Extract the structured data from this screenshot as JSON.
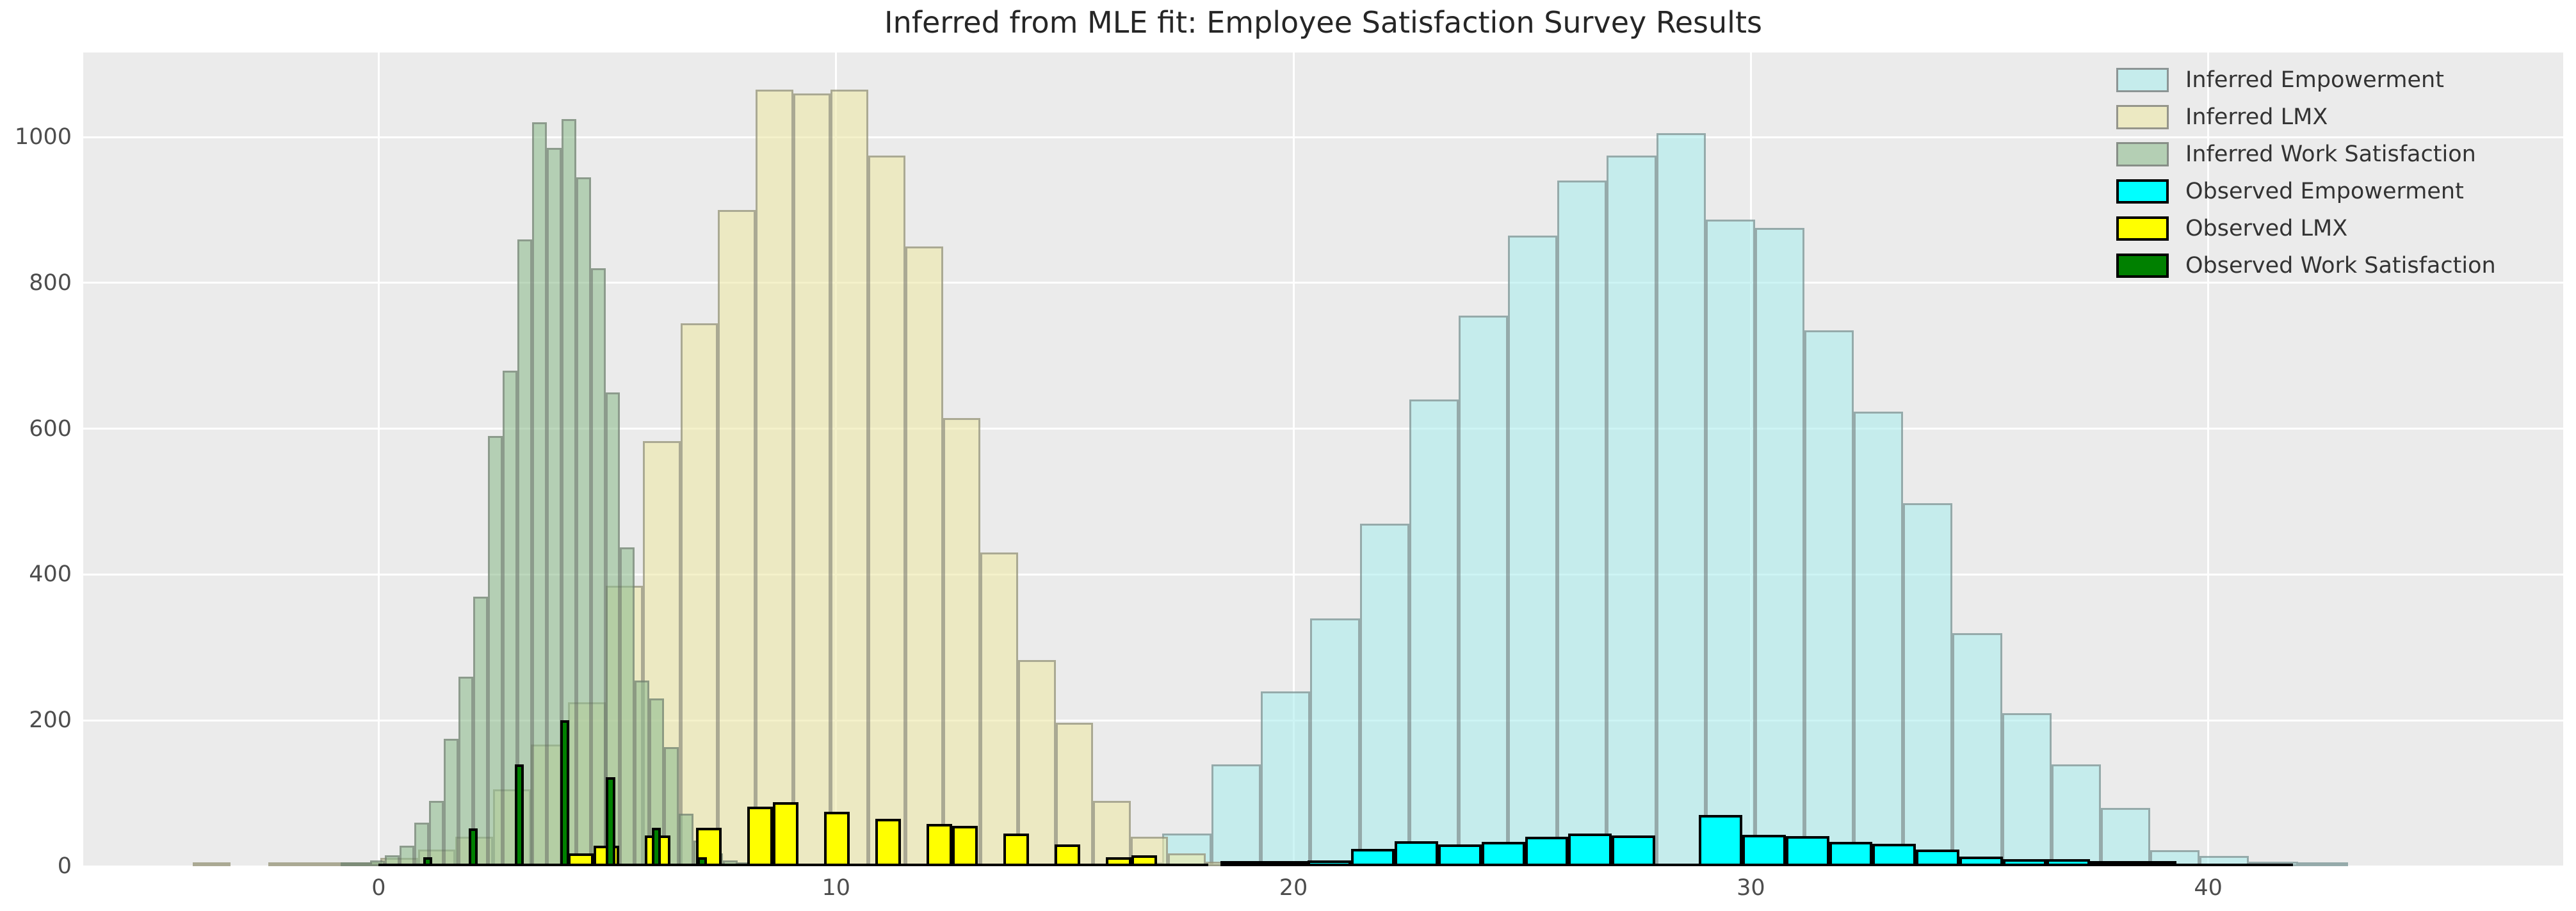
{
  "title": "Inferred from MLE fit: Employee Satisfaction Survey Results",
  "chart_data": {
    "type": "bar",
    "subtype": "overlaid-histograms",
    "title": "Inferred from MLE fit: Employee Satisfaction Survey Results",
    "xlabel": "",
    "ylabel": "",
    "style": "ggplot",
    "background": {
      "figure": "#FFFFFF",
      "axes": "#EBEBEB",
      "grid": "#FFFFFF"
    },
    "xlim": [
      -6.46,
      47.76
    ],
    "ylim": [
      0,
      1116
    ],
    "x_ticks": [
      0,
      10,
      20,
      30,
      40
    ],
    "x_tick_labels": [
      "0",
      "10",
      "20",
      "30",
      "40"
    ],
    "y_ticks": [
      0,
      200,
      400,
      600,
      800,
      1000
    ],
    "y_tick_labels": [
      "0",
      "200",
      "400",
      "600",
      "800",
      "1000"
    ],
    "grid": "on",
    "legend": {
      "position": "upper right",
      "entries": [
        "Inferred Empowerment",
        "Inferred LMX",
        "Inferred Work Satisfaction",
        "Observed Empowerment",
        "Observed LMX",
        "Observed Work Satisfaction"
      ]
    },
    "series": [
      {
        "name": "Inferred Empowerment",
        "kind": "inferred",
        "fill": "rgba(175,238,238,0.62)",
        "edge": "rgba(90,90,90,0.45)",
        "bin_start": 16.05,
        "bin_width": 1.08,
        "heights": [
          5,
          45,
          140,
          240,
          340,
          470,
          640,
          755,
          865,
          940,
          975,
          1005,
          887,
          875,
          735,
          623,
          498,
          320,
          210,
          140,
          80,
          22,
          14,
          6,
          2
        ]
      },
      {
        "name": "Inferred LMX",
        "kind": "inferred",
        "fill": "rgba(238,232,170,0.62)",
        "edge": "rgba(90,90,90,0.45)",
        "bin_start": -4.06,
        "bin_width": 0.82,
        "heights": [
          2,
          0,
          3,
          5,
          3,
          11,
          23,
          40,
          105,
          167,
          225,
          385,
          583,
          745,
          900,
          1065,
          1060,
          1065,
          975,
          850,
          615,
          430,
          283,
          197,
          90,
          40,
          18,
          6
        ]
      },
      {
        "name": "Inferred Work Satisfaction",
        "kind": "inferred",
        "fill": "rgba(143,188,143,0.60)",
        "edge": "rgba(90,90,90,0.45)",
        "bin_start": -0.83,
        "bin_width": 0.3215,
        "heights": [
          2,
          4,
          8,
          15,
          28,
          60,
          90,
          175,
          260,
          370,
          590,
          680,
          860,
          1020,
          985,
          1025,
          945,
          820,
          650,
          437,
          255,
          230,
          163,
          72,
          35,
          18,
          8,
          4
        ]
      },
      {
        "name": "Observed Empowerment",
        "kind": "observed",
        "fill": "#00FFFF",
        "edge": "#000000",
        "bin_start": 18.41,
        "bin_width": 0.95,
        "range": [
          18.41,
          41.85
        ],
        "heights": [
          4,
          6,
          8,
          24,
          34,
          30,
          33,
          40,
          45,
          42,
          0,
          70,
          43,
          41,
          33,
          31,
          23,
          13,
          10,
          10,
          7,
          4,
          0,
          0
        ]
      },
      {
        "name": "Observed LMX",
        "kind": "observed",
        "fill": "#FFFF00",
        "edge": "#000000",
        "bin_start": 4.14,
        "bin_width": 0.56,
        "range": [
          4.14,
          18.14
        ],
        "heights": [
          18,
          28,
          0,
          42,
          0,
          53,
          0,
          82,
          88,
          0,
          75,
          0,
          65,
          0,
          58,
          55,
          0,
          45,
          0,
          30,
          0,
          12,
          15,
          0,
          0
        ]
      },
      {
        "name": "Observed Work Satisfaction",
        "kind": "observed",
        "fill": "#008000",
        "edge": "#000000",
        "bin_start": 0.97,
        "bin_width": 0.2,
        "range": [
          0.0,
          7.3
        ],
        "heights": [
          12,
          0,
          0,
          0,
          0,
          52,
          0,
          0,
          0,
          0,
          140,
          0,
          0,
          0,
          0,
          200,
          0,
          0,
          0,
          0,
          122,
          0,
          0,
          0,
          0,
          53,
          0,
          0,
          0,
          0,
          12
        ]
      }
    ]
  }
}
